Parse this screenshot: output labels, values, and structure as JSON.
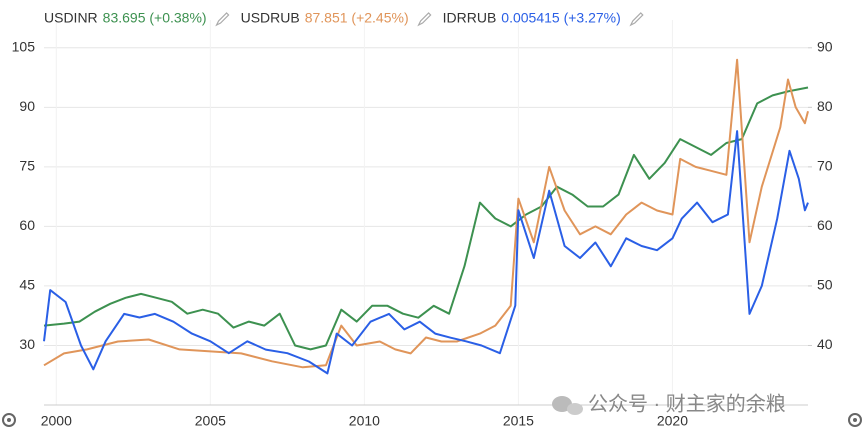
{
  "chart_data": {
    "type": "line",
    "xlim": [
      1999.6,
      2024.4
    ],
    "xticks": [
      2000,
      2005,
      2010,
      2015,
      2020
    ],
    "ylim": [
      15,
      112
    ],
    "yticks": [
      30,
      45,
      60,
      75,
      90,
      105
    ],
    "y2lim": [
      30,
      94.67
    ],
    "y2ticks": [
      40,
      50,
      60,
      70,
      80,
      90
    ],
    "grid": true,
    "watermark": "公众号 · 财主家的余粮",
    "series": [
      {
        "name": "USDINR",
        "quote": "83.695 (+0.38%)",
        "color": "#3d9150",
        "x": [
          1999.6,
          2000.25,
          2000.75,
          2001.25,
          2001.75,
          2002.25,
          2002.75,
          2003.25,
          2003.75,
          2004.25,
          2004.75,
          2005.25,
          2005.75,
          2006.25,
          2006.75,
          2007.25,
          2007.75,
          2008.25,
          2008.75,
          2009.25,
          2009.75,
          2010.25,
          2010.75,
          2011.25,
          2011.75,
          2012.25,
          2012.75,
          2013.25,
          2013.75,
          2014.25,
          2014.75,
          2015.25,
          2015.75,
          2016.25,
          2016.75,
          2017.25,
          2017.75,
          2018.25,
          2018.75,
          2019.25,
          2019.75,
          2020.25,
          2020.75,
          2021.25,
          2021.75,
          2022.25,
          2022.75,
          2023.25,
          2023.75,
          2024.4
        ],
        "values": [
          35,
          35.5,
          36,
          38.5,
          40.5,
          42,
          43,
          42,
          41,
          38,
          39,
          38,
          34.5,
          36,
          35,
          38,
          30,
          29,
          30,
          39,
          36,
          40,
          40,
          38,
          37,
          40,
          38,
          50,
          66,
          62,
          60,
          63,
          65,
          70,
          68,
          65,
          65,
          68,
          78,
          72,
          76,
          82,
          80,
          78,
          81,
          82,
          91,
          93,
          94,
          95
        ]
      },
      {
        "name": "USDRUB",
        "quote": "87.851 (+2.45%)",
        "color": "#e0955a",
        "x": [
          1999.6,
          2000.25,
          2001,
          2002,
          2003,
          2004,
          2005,
          2006,
          2007,
          2008,
          2008.75,
          2009.25,
          2009.75,
          2010.5,
          2011,
          2011.5,
          2012,
          2012.5,
          2013,
          2013.75,
          2014.25,
          2014.75,
          2015,
          2015.5,
          2016,
          2016.5,
          2017,
          2017.5,
          2018,
          2018.5,
          2019,
          2019.5,
          2020,
          2020.25,
          2020.75,
          2021.25,
          2021.75,
          2022.1,
          2022.5,
          2022.9,
          2023.5,
          2023.75,
          2024,
          2024.3,
          2024.4
        ],
        "values": [
          25,
          28,
          29,
          31,
          31.5,
          29,
          28.5,
          28,
          26,
          24.5,
          25,
          35,
          30,
          31,
          29,
          28,
          32,
          31,
          31,
          33,
          35,
          40,
          67,
          56,
          75,
          64,
          58,
          60,
          58,
          63,
          66,
          64,
          63,
          77,
          75,
          74,
          73,
          102,
          56,
          70,
          85,
          97,
          90,
          86,
          89
        ]
      },
      {
        "name": "IDRRUB",
        "quote": "0.005415 (+3.27%)",
        "color": "#2a5fe6",
        "axis": "y2",
        "x": [
          1999.6,
          1999.8,
          2000.3,
          2000.8,
          2001.2,
          2001.6,
          2002.2,
          2002.7,
          2003.2,
          2003.8,
          2004.4,
          2005,
          2005.6,
          2006.2,
          2006.8,
          2007.5,
          2008.2,
          2008.8,
          2009.1,
          2009.6,
          2010.2,
          2010.8,
          2011.3,
          2011.8,
          2012.3,
          2012.8,
          2013.3,
          2013.8,
          2014.4,
          2014.9,
          2015,
          2015.5,
          2016,
          2016.5,
          2017,
          2017.5,
          2018,
          2018.5,
          2019,
          2019.5,
          2020,
          2020.3,
          2020.8,
          2021.3,
          2021.8,
          2022.1,
          2022.5,
          2022.9,
          2023.4,
          2023.8,
          2024.1,
          2024.3,
          2024.4
        ],
        "values": [
          40.7,
          49.3,
          47.3,
          40,
          36,
          40.7,
          45.3,
          44.7,
          45.3,
          44,
          42,
          40.7,
          38.7,
          40.7,
          39.3,
          38.7,
          37.3,
          35.3,
          42,
          40,
          44,
          45.3,
          42.7,
          44,
          42,
          41.3,
          40.7,
          40,
          38.7,
          46.7,
          62.7,
          54.7,
          66,
          56.7,
          54.7,
          57.3,
          53.3,
          58,
          56.7,
          56,
          58,
          61.3,
          64,
          60.7,
          62,
          76,
          45.3,
          50,
          61.3,
          72.7,
          68,
          62.7,
          64
        ]
      }
    ]
  }
}
